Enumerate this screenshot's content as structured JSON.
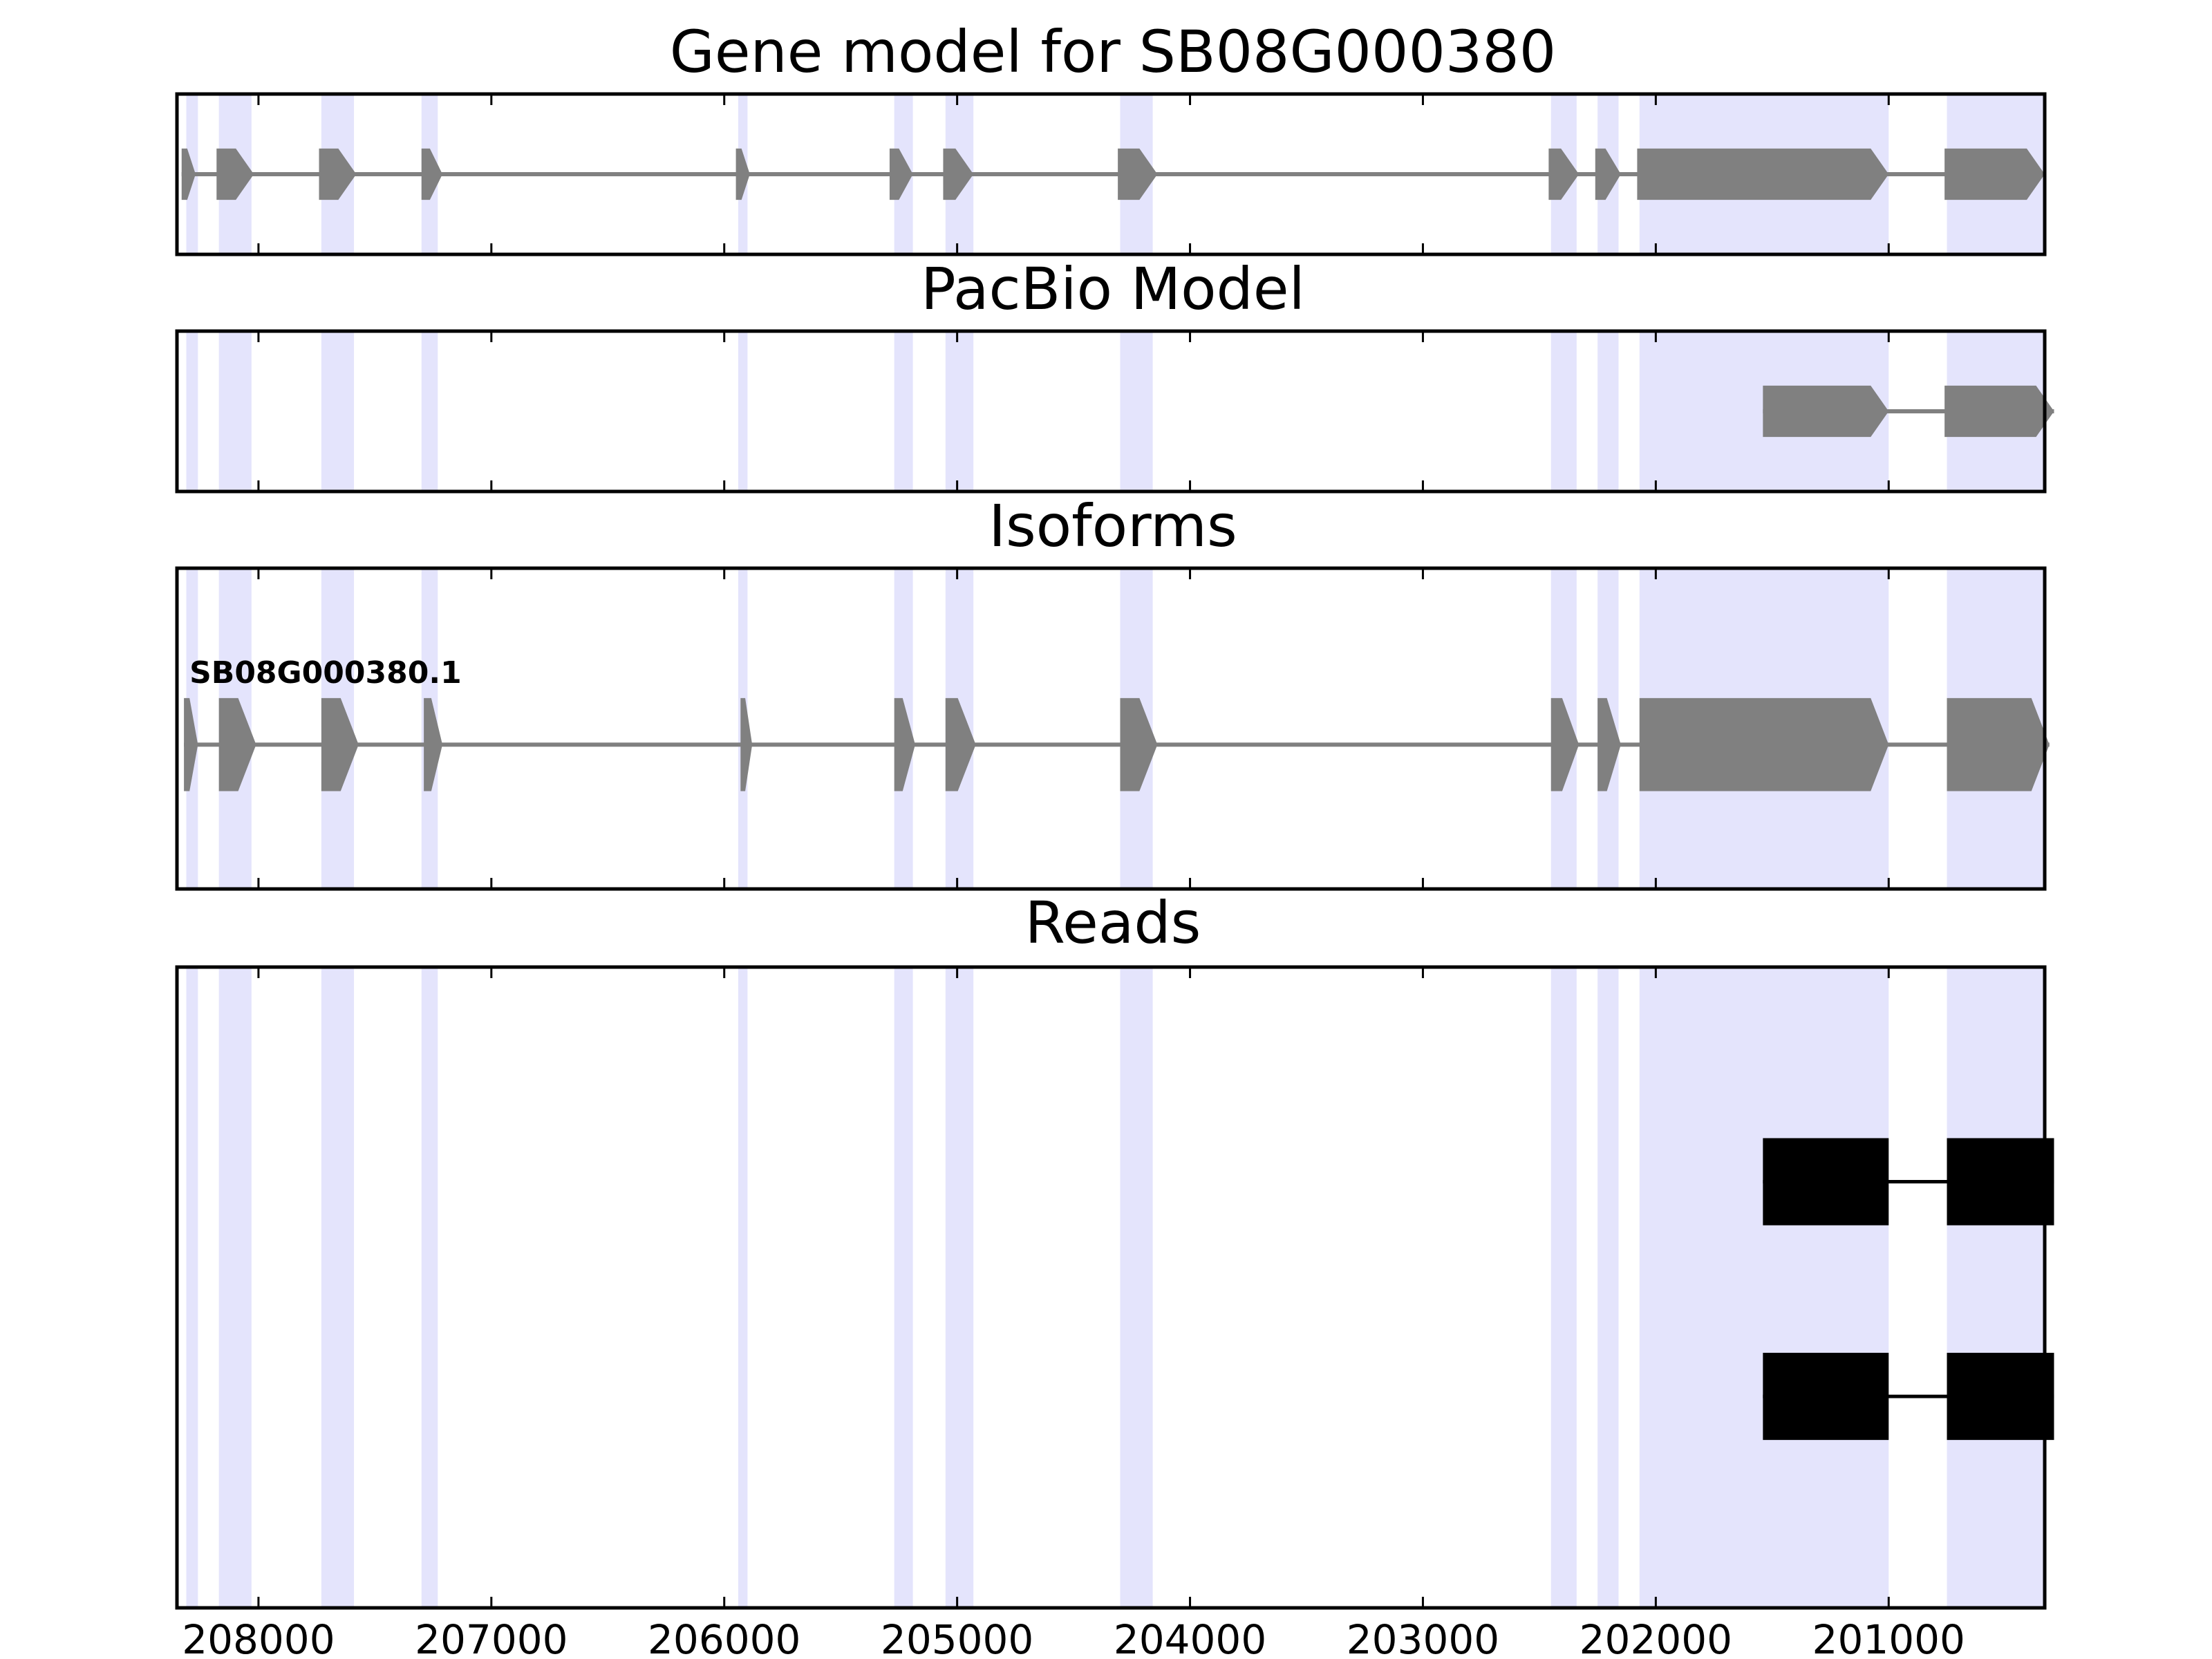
{
  "chart_data": {
    "type": "gene_model",
    "x_axis": {
      "reversed": true,
      "range": [
        208350,
        200330
      ],
      "ticks": [
        208000,
        207000,
        206000,
        205000,
        204000,
        203000,
        202000,
        201000
      ],
      "tick_labels": [
        "208000",
        "207000",
        "206000",
        "205000",
        "204000",
        "203000",
        "202000",
        "201000"
      ]
    },
    "highlight_color": "#e4e4fc",
    "exon_color": "#808080",
    "read_color": "#000000",
    "exon_regions": [
      [
        208310,
        208260
      ],
      [
        208170,
        208030
      ],
      [
        207730,
        207590
      ],
      [
        207300,
        207230
      ],
      [
        205940,
        205900
      ],
      [
        205270,
        205190
      ],
      [
        205050,
        204930
      ],
      [
        204300,
        204160
      ],
      [
        202450,
        202340
      ],
      [
        202250,
        202160
      ],
      [
        202070,
        201000
      ],
      [
        200750,
        200330
      ]
    ],
    "panels": [
      {
        "title": "Gene model for SB08G000380",
        "tracks": [
          {
            "label": "",
            "lane": 0.5,
            "half_height": 0.16,
            "exons": [
              [
                208330,
                208270
              ],
              [
                208180,
                208020
              ],
              [
                207740,
                207580
              ],
              [
                207300,
                207210
              ],
              [
                205950,
                205890
              ],
              [
                205290,
                205190
              ],
              [
                205060,
                204930
              ],
              [
                204310,
                204140
              ],
              [
                202460,
                202330
              ],
              [
                202260,
                202150
              ],
              [
                202080,
                201000
              ],
              [
                200760,
                200330
              ]
            ]
          }
        ]
      },
      {
        "title": "PacBio Model",
        "tracks": [
          {
            "label": "",
            "lane": 0.5,
            "half_height": 0.16,
            "exons": [
              [
                201540,
                201000
              ],
              [
                200760,
                200290
              ]
            ]
          }
        ]
      },
      {
        "title": "Isoforms",
        "tracks": [
          {
            "label": "SB08G000380.1",
            "lane": 0.45,
            "half_height": 0.145,
            "exons": [
              [
                208320,
                208260
              ],
              [
                208170,
                208010
              ],
              [
                207730,
                207570
              ],
              [
                207290,
                207210
              ],
              [
                205930,
                205880
              ],
              [
                205270,
                205180
              ],
              [
                205050,
                204920
              ],
              [
                204300,
                204140
              ],
              [
                202450,
                202330
              ],
              [
                202250,
                202150
              ],
              [
                202070,
                201000
              ],
              [
                200750,
                200310
              ]
            ]
          }
        ]
      },
      {
        "title": "Reads",
        "tracks": [
          {
            "label": "",
            "lane": 0.665,
            "half_height": 0.068,
            "exons": [
              [
                201540,
                201000
              ],
              [
                200750,
                200290
              ]
            ]
          },
          {
            "label": "",
            "lane": 0.33,
            "half_height": 0.068,
            "exons": [
              [
                201540,
                201000
              ],
              [
                200750,
                200290
              ]
            ]
          }
        ]
      }
    ]
  }
}
